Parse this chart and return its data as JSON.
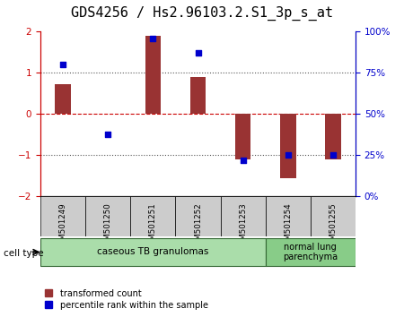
{
  "title": "GDS4256 / Hs2.96103.2.S1_3p_s_at",
  "samples": [
    "GSM501249",
    "GSM501250",
    "GSM501251",
    "GSM501252",
    "GSM501253",
    "GSM501254",
    "GSM501255"
  ],
  "transformed_count": [
    0.72,
    0.02,
    1.9,
    0.9,
    -1.1,
    -1.55,
    -1.1
  ],
  "percentile_rank": [
    80,
    38,
    96,
    87,
    22,
    25,
    25
  ],
  "ylim_left": [
    -2,
    2
  ],
  "ylim_right": [
    0,
    100
  ],
  "yticks_left": [
    -2,
    -1,
    0,
    1,
    2
  ],
  "yticks_right": [
    0,
    25,
    50,
    75,
    100
  ],
  "ytick_labels_right": [
    "0%",
    "25%",
    "50%",
    "75%",
    "100%"
  ],
  "bar_color": "#993333",
  "square_color": "#0000cc",
  "bar_width": 0.35,
  "cell_type_groups": [
    {
      "label": "caseous TB granulomas",
      "samples": [
        0,
        1,
        2,
        3,
        4
      ],
      "color": "#aaddaa"
    },
    {
      "label": "normal lung\nparenchyma",
      "samples": [
        5,
        6
      ],
      "color": "#88cc88"
    }
  ],
  "cell_type_label": "cell type",
  "legend_red": "transformed count",
  "legend_blue": "percentile rank within the sample",
  "tick_fontsize": 7.5,
  "title_fontsize": 11
}
